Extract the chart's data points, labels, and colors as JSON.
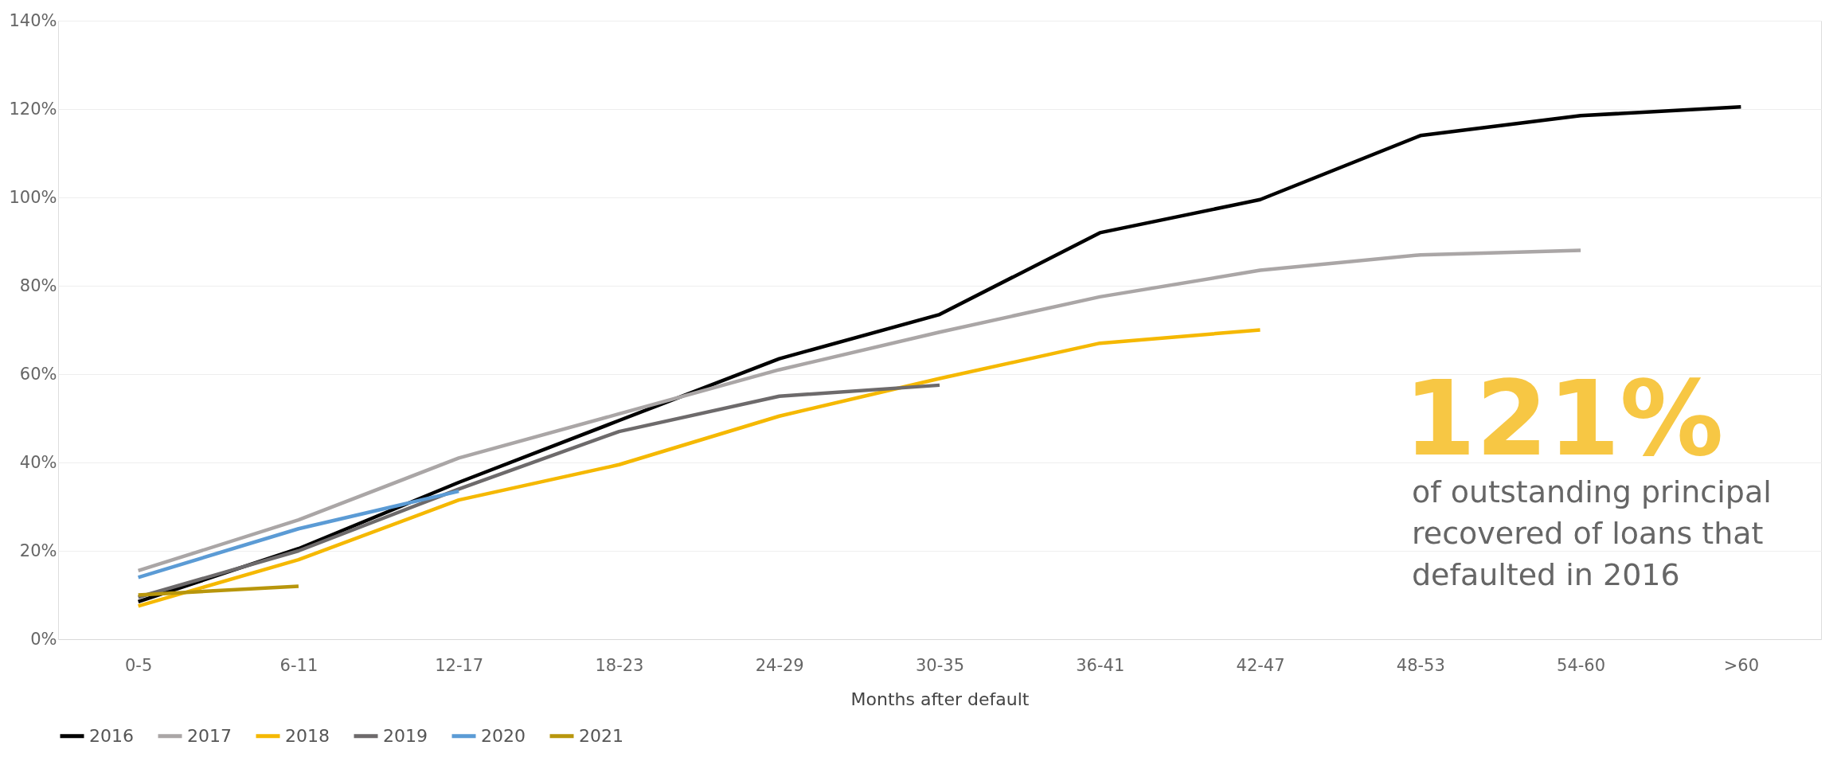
{
  "chart_data": {
    "type": "line",
    "xlabel": "Months after default",
    "categories": [
      "0-5",
      "6-11",
      "12-17",
      "18-23",
      "24-29",
      "30-35",
      "36-41",
      "42-47",
      "48-53",
      "54-60",
      ">60"
    ],
    "series": [
      {
        "name": "2016",
        "color": "#000000",
        "values": [
          8.5,
          20.5,
          35.5,
          49.5,
          63.5,
          73.5,
          92,
          99.5,
          114,
          118.5,
          120.5
        ]
      },
      {
        "name": "2017",
        "color": "#aaa6a6",
        "values": [
          15.5,
          27,
          41,
          51,
          61,
          69.5,
          77.5,
          83.5,
          87,
          88,
          null
        ]
      },
      {
        "name": "2018",
        "color": "#f5b800",
        "values": [
          7.5,
          18,
          31.5,
          39.5,
          50.5,
          59,
          67,
          70,
          null,
          null,
          null
        ]
      },
      {
        "name": "2019",
        "color": "#6d6a6b",
        "values": [
          9.5,
          20,
          34,
          47,
          55,
          57.5,
          null,
          null,
          null,
          null,
          null
        ]
      },
      {
        "name": "2020",
        "color": "#5b9bd5",
        "values": [
          14,
          25,
          33.5,
          null,
          null,
          null,
          null,
          null,
          null,
          null,
          null
        ]
      },
      {
        "name": "2021",
        "color": "#b8960c",
        "values": [
          10,
          12,
          null,
          null,
          null,
          null,
          null,
          null,
          null,
          null,
          null
        ]
      }
    ],
    "ylim": [
      0,
      140
    ],
    "yticks": [
      {
        "value": 0,
        "label": "0%"
      },
      {
        "value": 20,
        "label": "20%"
      },
      {
        "value": 40,
        "label": "40%"
      },
      {
        "value": 60,
        "label": "60%"
      },
      {
        "value": 80,
        "label": "80%"
      },
      {
        "value": 100,
        "label": "100%"
      },
      {
        "value": 120,
        "label": "120%"
      },
      {
        "value": 140,
        "label": "140%"
      }
    ],
    "grid": "y",
    "legend": "bottom",
    "line_style": "solid",
    "annotations": [
      "121%",
      "of outstanding principal recovered of loans that defaulted in 2016"
    ]
  }
}
